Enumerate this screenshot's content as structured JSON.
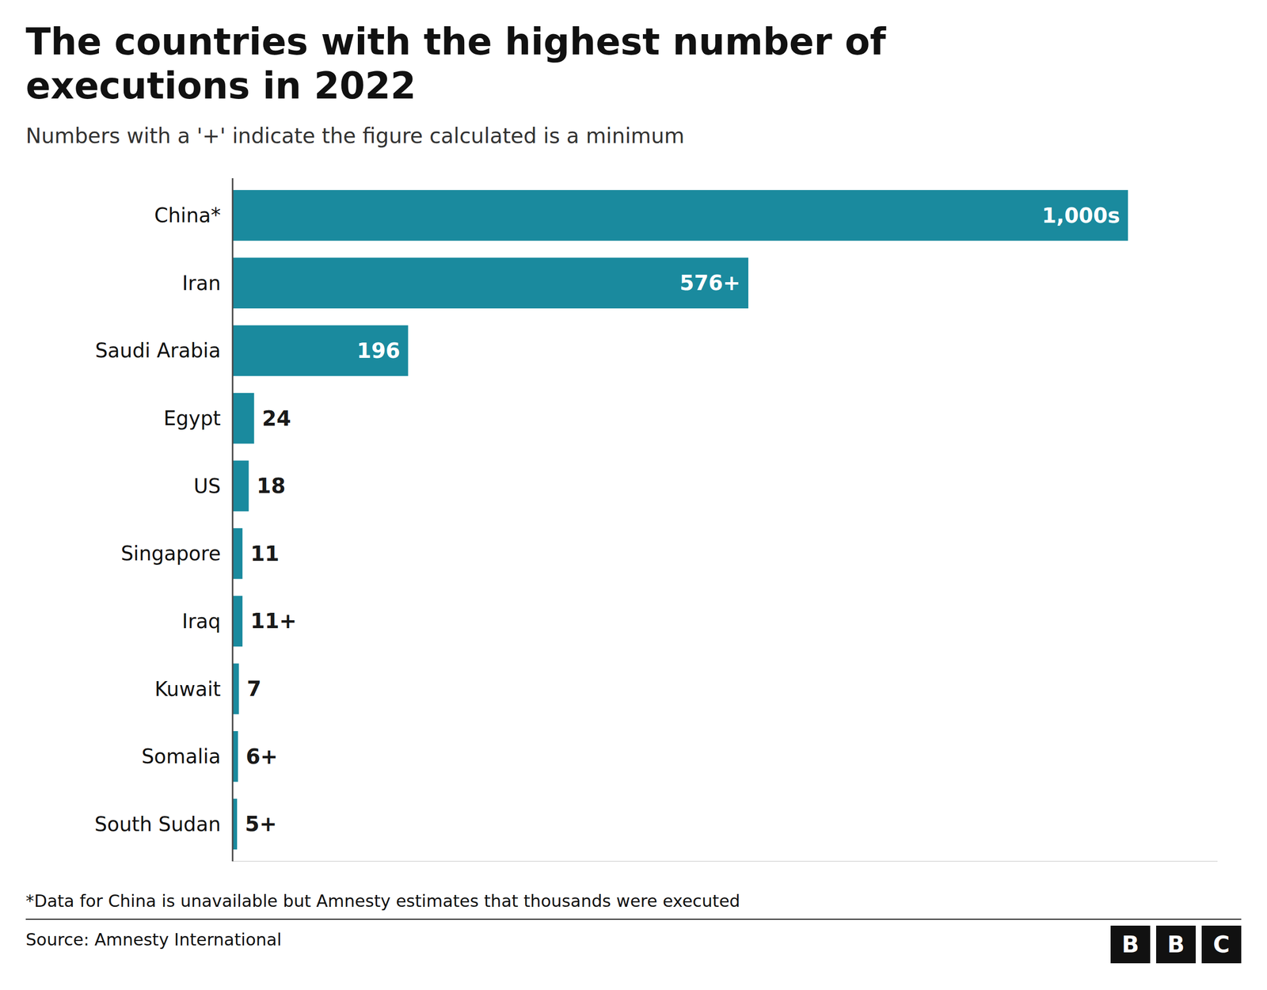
{
  "chart_data": {
    "type": "bar",
    "orientation": "horizontal",
    "title": "The countries with the highest number of executions in 2022",
    "subtitle": "Numbers with a '+' indicate the figure calculated is a minimum",
    "footnote": "*Data for China is unavailable but Amnesty estimates that thousands were executed",
    "source": "Source: Amnesty International",
    "logo": [
      "B",
      "B",
      "C"
    ],
    "categories": [
      "China*",
      "Iran",
      "Saudi Arabia",
      "Egypt",
      "US",
      "Singapore",
      "Iraq",
      "Kuwait",
      "Somalia",
      "South Sudan"
    ],
    "values": [
      1000,
      576,
      196,
      24,
      18,
      11,
      11,
      7,
      6,
      5
    ],
    "value_labels": [
      "1,000s",
      "576+",
      "196",
      "24",
      "18",
      "11",
      "11+",
      "7",
      "6+",
      "5+"
    ],
    "color": "#1a8a9e",
    "xlim": [
      0,
      1100
    ],
    "data_labels": true,
    "tick_labels": "y",
    "grid": false
  }
}
